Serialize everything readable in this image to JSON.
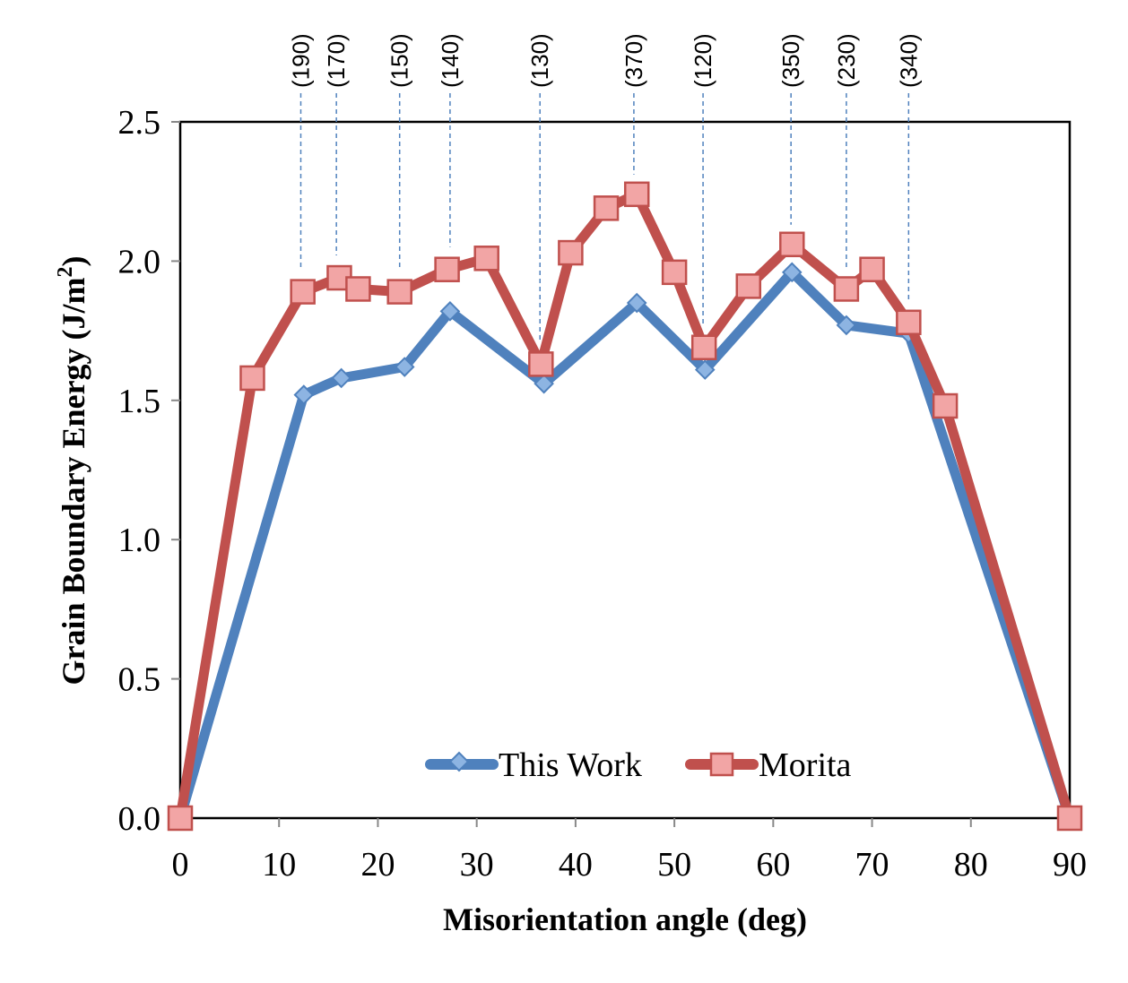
{
  "chart_data": {
    "type": "line",
    "title": "",
    "xlabel": "Misorientation angle (deg)",
    "ylabel_main": "Grain Boundary Energy (J/m",
    "ylabel_sup": "2",
    "ylabel_end": ")",
    "xlim": [
      0,
      90
    ],
    "ylim": [
      0,
      2.5
    ],
    "xticks": [
      0,
      10,
      20,
      30,
      40,
      50,
      60,
      70,
      80,
      90
    ],
    "yticks": [
      0.0,
      0.5,
      1.0,
      1.5,
      2.0,
      2.5
    ],
    "ytick_labels": [
      "0.0",
      "0.5",
      "1.0",
      "1.5",
      "2.0",
      "2.5"
    ],
    "grid": false,
    "legend_position": "bottom-center",
    "series": [
      {
        "name": "This Work",
        "color": "#4F81BD",
        "marker": "diamond",
        "points": [
          [
            0,
            0.0
          ],
          [
            12.5,
            1.52
          ],
          [
            16.3,
            1.58
          ],
          [
            22.7,
            1.62
          ],
          [
            27.3,
            1.82
          ],
          [
            36.8,
            1.56
          ],
          [
            46.2,
            1.85
          ],
          [
            53.1,
            1.61
          ],
          [
            61.9,
            1.96
          ],
          [
            67.4,
            1.77
          ],
          [
            73.7,
            1.74
          ],
          [
            90,
            0.0
          ]
        ]
      },
      {
        "name": "Morita",
        "color": "#C0504D",
        "marker": "square",
        "points": [
          [
            0,
            0.0
          ],
          [
            7.3,
            1.58
          ],
          [
            12.4,
            1.89
          ],
          [
            16.1,
            1.94
          ],
          [
            18,
            1.9
          ],
          [
            22.2,
            1.89
          ],
          [
            27,
            1.97
          ],
          [
            31,
            2.01
          ],
          [
            36.5,
            1.63
          ],
          [
            39.5,
            2.03
          ],
          [
            43.1,
            2.19
          ],
          [
            46.2,
            2.24
          ],
          [
            50,
            1.96
          ],
          [
            53,
            1.69
          ],
          [
            57.5,
            1.91
          ],
          [
            61.9,
            2.06
          ],
          [
            67.4,
            1.9
          ],
          [
            70,
            1.97
          ],
          [
            73.7,
            1.78
          ],
          [
            77.4,
            1.48
          ],
          [
            90,
            0.0
          ]
        ]
      }
    ],
    "annotations": [
      {
        "label": "(190)",
        "x": 12.2,
        "y": 1.9
      },
      {
        "label": "(170)",
        "x": 15.8,
        "y": 1.95
      },
      {
        "label": "(150)",
        "x": 22.2,
        "y": 1.9
      },
      {
        "label": "(140)",
        "x": 27.3,
        "y": 1.98
      },
      {
        "label": "(130)",
        "x": 36.4,
        "y": 1.64
      },
      {
        "label": "(370)",
        "x": 45.9,
        "y": 2.24
      },
      {
        "label": "(120)",
        "x": 52.9,
        "y": 1.7
      },
      {
        "label": "(350)",
        "x": 61.8,
        "y": 2.06
      },
      {
        "label": "(230)",
        "x": 67.4,
        "y": 1.9
      },
      {
        "label": "(340)",
        "x": 73.7,
        "y": 1.78
      }
    ]
  }
}
